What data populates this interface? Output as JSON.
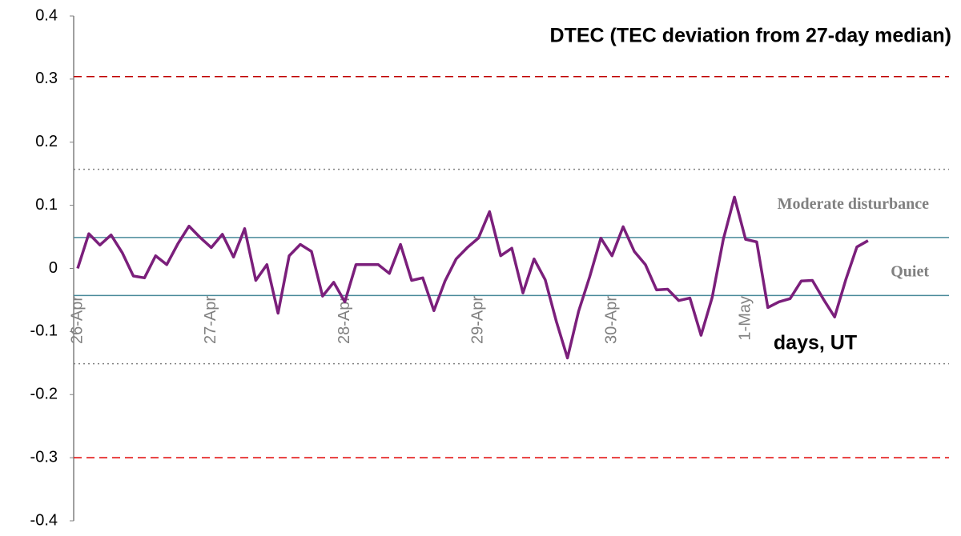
{
  "chart_data": {
    "type": "line",
    "title": "DTEC (TEC deviation from 27-day median)",
    "x_label": "days, UT",
    "categories": [
      "26-Apr",
      null,
      null,
      null,
      null,
      null,
      null,
      null,
      null,
      null,
      null,
      null,
      "27-Apr",
      null,
      null,
      null,
      null,
      null,
      null,
      null,
      null,
      null,
      null,
      null,
      "28-Apr",
      null,
      null,
      null,
      null,
      null,
      null,
      null,
      null,
      null,
      null,
      null,
      "29-Apr",
      null,
      null,
      null,
      null,
      null,
      null,
      null,
      null,
      null,
      null,
      null,
      "30-Apr",
      null,
      null,
      null,
      null,
      null,
      null,
      null,
      null,
      null,
      null,
      null,
      "1-May",
      null,
      null,
      null,
      null,
      null,
      null,
      null,
      null,
      null,
      null,
      null
    ],
    "series": [
      {
        "name": "DTEC",
        "color": "#7b1f7b",
        "values": [
          0,
          0.055,
          0.037,
          0.053,
          0.025,
          -0.012,
          -0.015,
          0.02,
          0.006,
          0.039,
          0.067,
          0.049,
          0.033,
          0.054,
          0.018,
          0.063,
          -0.019,
          0.006,
          -0.071,
          0.02,
          0.038,
          0.027,
          -0.044,
          -0.022,
          -0.053,
          0.006,
          0.006,
          0.006,
          -0.008,
          0.038,
          -0.019,
          -0.015,
          -0.067,
          -0.02,
          0.015,
          0.033,
          0.048,
          0.09,
          0.02,
          0.032,
          -0.039,
          0.015,
          -0.018,
          -0.084,
          -0.142,
          -0.068,
          -0.013,
          0.048,
          0.02,
          0.066,
          0.027,
          0.006,
          -0.034,
          -0.033,
          -0.051,
          -0.047,
          -0.106,
          -0.046,
          0.046,
          0.113,
          0.046,
          0.042,
          -0.062,
          -0.053,
          -0.048,
          -0.02,
          -0.019,
          -0.049,
          -0.077,
          -0.018,
          0.034,
          0.044
        ]
      }
    ],
    "ylim": [
      -0.4,
      0.4
    ],
    "yticks": [
      -0.4,
      -0.3,
      -0.2,
      -0.1,
      0,
      0.1,
      0.2,
      0.3,
      0.4
    ],
    "reference_lines": [
      {
        "value": 0.304,
        "color": "#c00000",
        "style": "dashed"
      },
      {
        "value": -0.3,
        "color": "#e00000",
        "style": "dashed"
      },
      {
        "value": 0.157,
        "color": "#808080",
        "style": "dotted"
      },
      {
        "value": -0.151,
        "color": "#808080",
        "style": "dotted"
      },
      {
        "value": 0.049,
        "color": "#4a8a9a",
        "style": "solid"
      },
      {
        "value": -0.043,
        "color": "#4a8a9a",
        "style": "solid"
      }
    ],
    "annotations": [
      {
        "text": "Moderate disturbance",
        "y": 0.113
      },
      {
        "text": "Quiet",
        "y": 0.006
      }
    ]
  }
}
